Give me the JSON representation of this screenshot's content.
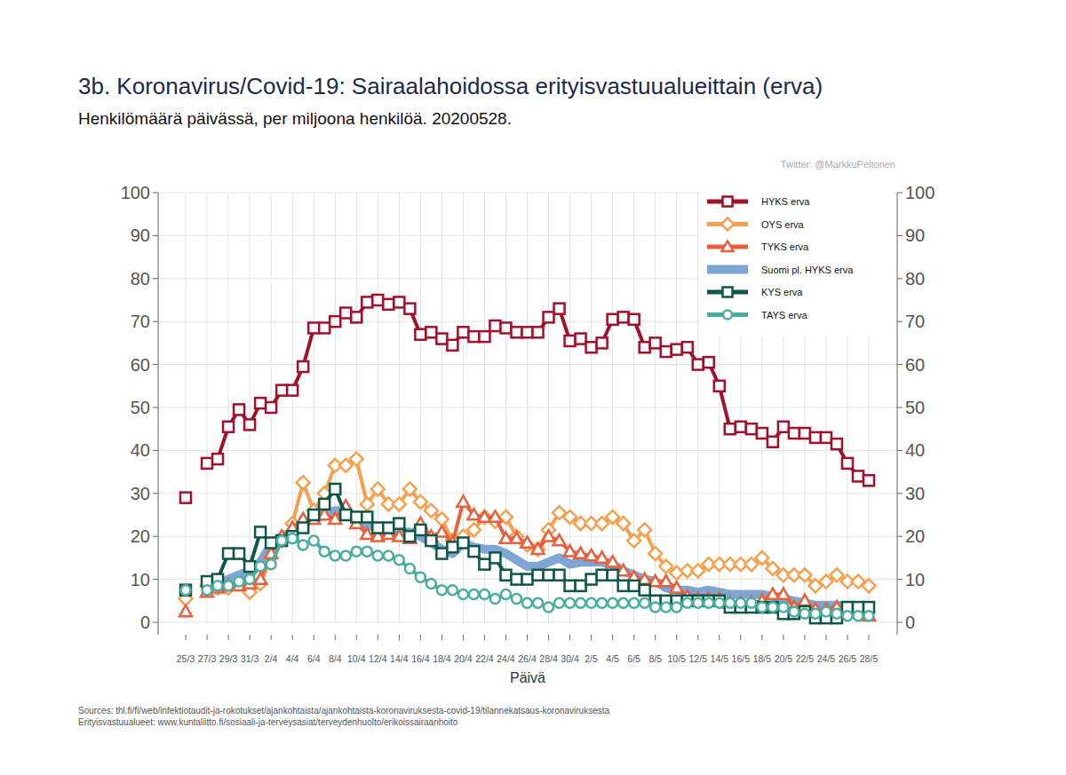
{
  "chart_data": {
    "type": "line",
    "title": "3b. Koronavirus/Covid-19: Sairaalahoidossa erityisvastuualueittain (erva)",
    "subtitle": "Henkilömäärä päivässä, per miljoona henkilöä. 20200528.",
    "x_label": "Päivä",
    "annotations": [
      "Twitter: @MarkkuPeltonen",
      "Sources: thl.fi/fi/web/infektiotaudit-ja-rokotukset/ajankohtaista/ajankohtaista-koronaviruksesta-covid-19/tilannekatsaus-koronaviruksesta",
      "Erityisvastuualueet: www.kuntaliitto.fi/sosiaali-ja-terveysasiat/terveydenhuolto/erikoissairaanhoito"
    ],
    "categories": [
      "25/3",
      null,
      "27/3",
      null,
      "29/3",
      null,
      "31/3",
      null,
      "2/4",
      null,
      "4/4",
      null,
      "6/4",
      null,
      "8/4",
      null,
      "10/4",
      null,
      "12/4",
      null,
      "14/4",
      null,
      "16/4",
      null,
      "18/4",
      null,
      "20/4",
      null,
      "22/4",
      null,
      "24/4",
      null,
      "26/4",
      null,
      "28/4",
      null,
      "30/4",
      null,
      "2/5",
      null,
      "4/5",
      null,
      "6/5",
      null,
      "8/5",
      null,
      "10/5",
      null,
      "12/5",
      null,
      "14/5",
      null,
      "16/5",
      null,
      "18/5",
      null,
      "20/5",
      null,
      "22/5",
      null,
      "24/5",
      null,
      "26/5",
      null,
      "28/5"
    ],
    "series": [
      {
        "name": "HYKS erva",
        "color": "#a0112b",
        "marker": "square",
        "values": [
          29,
          null,
          37,
          38,
          45.5,
          49.5,
          46,
          51,
          50,
          54,
          54,
          59.5,
          68.5,
          68.5,
          70,
          72,
          71,
          74.5,
          75,
          74,
          74.5,
          73,
          67,
          67.5,
          66,
          64.5,
          67.5,
          66.5,
          66.5,
          69,
          68.5,
          67.5,
          67.5,
          67.5,
          71,
          73,
          65.5,
          66,
          64,
          65,
          70.5,
          71,
          70.5,
          64,
          65,
          63,
          63.5,
          64,
          60,
          60.5,
          55,
          45,
          45.5,
          45,
          44,
          42,
          45.5,
          44,
          44,
          43,
          43,
          41.5,
          37,
          34,
          33
        ]
      },
      {
        "name": "OYS erva",
        "color": "#f6a04e",
        "marker": "diamond",
        "values": [
          5.5,
          null,
          8.5,
          8,
          8,
          9,
          7,
          9,
          15,
          19,
          23,
          32.5,
          26,
          30,
          36.5,
          36.5,
          38,
          27.5,
          31,
          27.5,
          27.5,
          31,
          28,
          26,
          24,
          19,
          20,
          21.5,
          24.5,
          23.5,
          24.5,
          20,
          18,
          17,
          21.5,
          25.5,
          24.5,
          23,
          23,
          23,
          24.5,
          23,
          19,
          21.5,
          16,
          13,
          11.5,
          12,
          12,
          13.5,
          13.5,
          13.5,
          13.5,
          13.5,
          15,
          12.5,
          11,
          11,
          11,
          8.5,
          9.5,
          11,
          9.5,
          9.5,
          8.5
        ]
      },
      {
        "name": "TYKS erva",
        "color": "#e8603c",
        "marker": "triangle",
        "values": [
          2.5,
          null,
          7,
          8,
          8.5,
          8.5,
          9,
          10,
          16,
          20,
          22,
          24,
          24,
          25,
          24,
          27,
          23,
          20.5,
          20,
          20.5,
          20,
          19.5,
          23,
          20,
          21,
          18.5,
          28,
          25,
          24.5,
          24.5,
          19.5,
          19.5,
          18.5,
          17,
          20,
          19,
          16.5,
          16,
          15.5,
          15,
          14,
          12,
          10.5,
          10,
          9.5,
          9.5,
          8,
          6,
          5.5,
          5.5,
          5.5,
          4.5,
          4.5,
          4.5,
          5,
          6.5,
          6.5,
          3.5,
          5,
          3,
          3,
          3.5,
          3,
          3,
          1.5
        ]
      },
      {
        "name": "Suomi pl. HYKS erva",
        "color": "#7fa5d5",
        "marker": "none",
        "values": [
          6,
          null,
          8,
          8.5,
          10,
          11,
          12,
          14,
          18,
          20,
          21,
          23,
          24,
          25,
          26,
          26,
          23.5,
          22.5,
          22,
          21.5,
          21,
          21,
          20,
          18.5,
          17,
          16,
          18.5,
          17.5,
          17,
          17,
          16,
          14.5,
          13,
          13,
          14,
          15,
          13.5,
          14,
          14,
          14,
          13.5,
          12,
          11,
          10,
          9.5,
          8,
          7.5,
          7.5,
          7,
          7.5,
          7,
          6.5,
          6.5,
          6.5,
          6.5,
          6,
          5.5,
          5,
          4.5,
          4,
          4,
          4,
          4,
          3.5,
          3
        ]
      },
      {
        "name": "KYS erva",
        "color": "#0f5647",
        "marker": "square",
        "values": [
          7.5,
          null,
          9.5,
          10,
          16,
          16,
          13,
          21,
          18.5,
          19,
          20,
          22,
          25,
          27.5,
          31,
          25,
          24.5,
          24.5,
          22,
          22,
          23,
          20,
          21.5,
          19,
          16,
          17.5,
          18.5,
          16.5,
          13.5,
          15,
          11,
          10,
          10,
          11,
          11,
          11,
          8.5,
          8.5,
          10,
          11,
          11,
          8.5,
          8.5,
          7.5,
          5,
          5,
          5,
          5,
          5,
          5,
          5,
          3.5,
          3.5,
          3.5,
          3.5,
          3.5,
          2,
          2,
          2.5,
          1,
          1,
          1,
          3.5,
          3.5,
          3.5
        ]
      },
      {
        "name": "TAYS erva",
        "color": "#4aad9f",
        "marker": "circle",
        "values": [
          7.5,
          null,
          7.5,
          8.5,
          8.5,
          9.5,
          10,
          13,
          13.5,
          19,
          19.5,
          18,
          19,
          16.5,
          15.5,
          15.5,
          16.5,
          16.5,
          15.5,
          15.5,
          14.5,
          12.5,
          10.5,
          9,
          7.5,
          7.5,
          6.5,
          6.5,
          6.5,
          5.5,
          6.5,
          5.5,
          4.5,
          4.5,
          3.5,
          4.5,
          4.5,
          4.5,
          4.5,
          4.5,
          4.5,
          4.5,
          4.5,
          4.5,
          3.5,
          3.5,
          3.5,
          4.5,
          4.5,
          4.5,
          4.5,
          4.5,
          4.5,
          4.5,
          3.5,
          3.5,
          3.5,
          2.5,
          2,
          2,
          2.5,
          2,
          1.5,
          1.5,
          1.5
        ]
      }
    ],
    "ylim": [
      0,
      100
    ],
    "yticks": [
      0,
      10,
      20,
      30,
      40,
      50,
      60,
      70,
      80,
      90,
      100
    ],
    "y2lim": [
      0,
      100
    ],
    "y2ticks": [
      0,
      10,
      20,
      30,
      40,
      50,
      60,
      70,
      80,
      90,
      100
    ],
    "grid": true,
    "legend": "top-right"
  }
}
